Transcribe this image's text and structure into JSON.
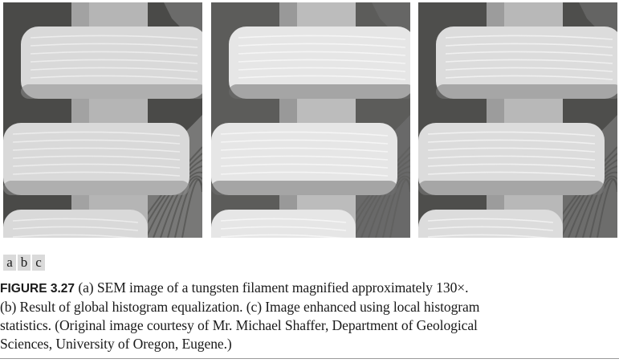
{
  "figure": {
    "subfigure_labels": [
      "a",
      "b",
      "c"
    ],
    "caption_label": "FIGURE 3.27",
    "caption_lines": [
      "(a) SEM image of a tungsten filament magnified approximately 130×.",
      "(b) Result of global histogram equalization. (c) Image enhanced using local histogram",
      "statistics. (Original image courtesy of Mr. Michael Shaffer, Department of Geological",
      "Sciences, University of Oregon, Eugene.)"
    ]
  },
  "panels": [
    {
      "id": "a",
      "bg": "#4a4a48",
      "coil": "#d9d9d9",
      "core": "#b5b5b5",
      "shade": "#8c8c8c",
      "ridge": "#efefef"
    },
    {
      "id": "b",
      "bg": "#5c5c5a",
      "coil": "#e6e6e6",
      "core": "#bcbcbc",
      "shade": "#6f6f6f",
      "ridge": "#f7f7f7"
    },
    {
      "id": "c",
      "bg": "#4e4e4c",
      "coil": "#dcdcdc",
      "core": "#b8b8b8",
      "shade": "#7a7a7a",
      "ridge": "#f3f3f3"
    }
  ]
}
